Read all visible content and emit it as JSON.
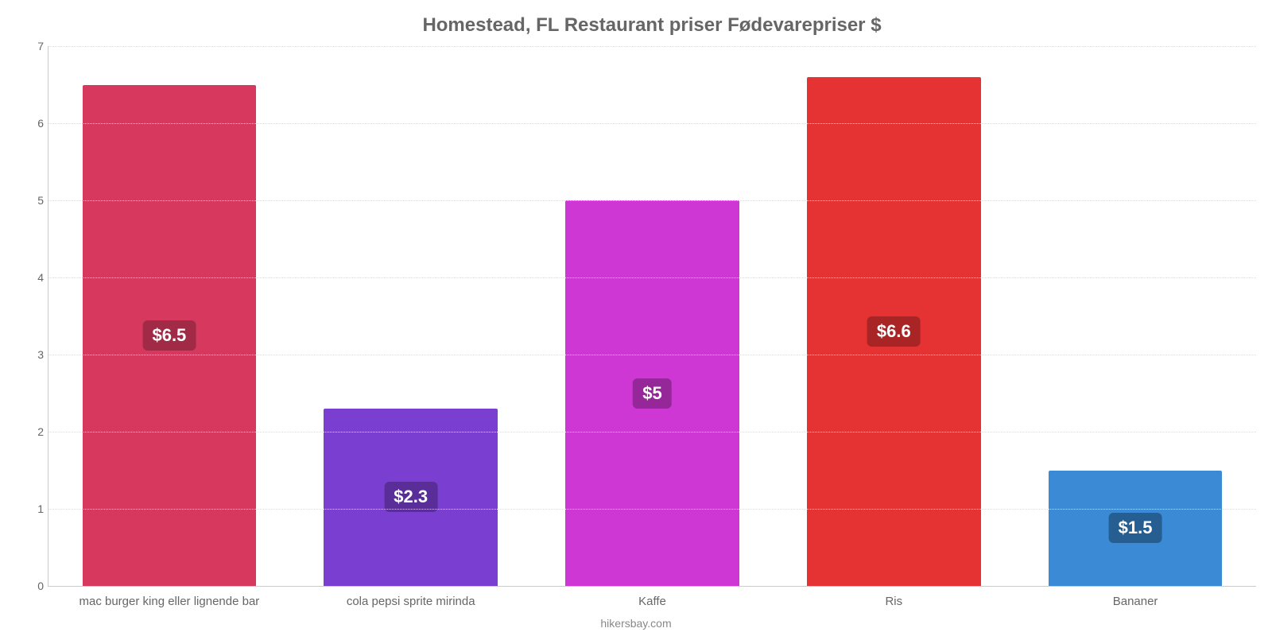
{
  "chart": {
    "type": "bar",
    "title": "Homestead, FL Restaurant priser Fødevarepriser $",
    "title_fontsize": 24,
    "title_color": "#666666",
    "categories": [
      "mac burger king eller lignende bar",
      "cola pepsi sprite mirinda",
      "Kaffe",
      "Ris",
      "Bananer"
    ],
    "values": [
      6.5,
      2.3,
      5,
      6.6,
      1.5
    ],
    "value_labels": [
      "$6.5",
      "$2.3",
      "$5",
      "$6.6",
      "$1.5"
    ],
    "bar_colors": [
      "#d7395e",
      "#7a3fd1",
      "#cf37d4",
      "#e53232",
      "#3a8ad6"
    ],
    "badge_colors": [
      "#a12b46",
      "#5a2e99",
      "#962799",
      "#a92424",
      "#275e91"
    ],
    "value_fontsize": 22,
    "ylim": [
      0,
      7
    ],
    "ytick_step": 1,
    "yticks": [
      "0",
      "1",
      "2",
      "3",
      "4",
      "5",
      "6",
      "7"
    ],
    "xtick_fontsize": 15,
    "ytick_fontsize": 14,
    "tick_color": "#666666",
    "background_color": "#ffffff",
    "grid_color": "#dddddd",
    "bar_width": 0.8,
    "credit": "hikersbay.com",
    "credit_color": "#888888"
  }
}
